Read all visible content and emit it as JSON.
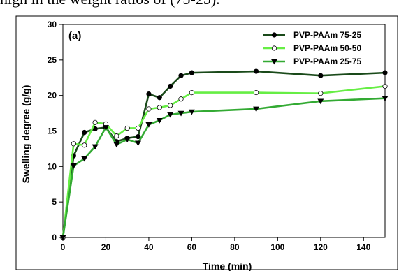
{
  "caption_fragment": "high in the weight ratios of (75-25).",
  "chart_data": {
    "type": "line",
    "panel_label": "(a)",
    "xlabel": "Time (min)",
    "ylabel": "Swelling degree (g/g)",
    "xlim": [
      0,
      150
    ],
    "ylim": [
      0,
      30
    ],
    "xticks": [
      0,
      20,
      40,
      60,
      80,
      100,
      120,
      140
    ],
    "yticks": [
      0,
      5,
      10,
      15,
      20,
      25,
      30
    ],
    "grid": false,
    "legend_position": "top-right",
    "series": [
      {
        "name": "PVP-PAAm 75-25",
        "color": "#1a4a1a",
        "marker": "circle-filled",
        "x": [
          0,
          5,
          10,
          15,
          20,
          25,
          30,
          35,
          40,
          45,
          50,
          55,
          60,
          90,
          120,
          150
        ],
        "y": [
          0,
          11.5,
          14.8,
          15.3,
          15.5,
          13.5,
          14.0,
          14.2,
          20.2,
          19.7,
          21.3,
          22.8,
          23.2,
          23.4,
          22.8,
          23.2
        ]
      },
      {
        "name": "PVP-PAAm 50-50",
        "color": "#66ee44",
        "marker": "circle-open",
        "x": [
          0,
          5,
          10,
          15,
          20,
          25,
          30,
          35,
          40,
          45,
          50,
          55,
          60,
          90,
          120,
          150
        ],
        "y": [
          0,
          13.2,
          13.0,
          16.2,
          16.0,
          14.3,
          15.4,
          15.4,
          18.1,
          18.3,
          18.6,
          19.5,
          20.4,
          20.4,
          20.3,
          21.3
        ]
      },
      {
        "name": "PVP-PAAm 25-75",
        "color": "#33aa33",
        "marker": "triangle-down",
        "x": [
          0,
          5,
          10,
          15,
          20,
          25,
          30,
          35,
          40,
          45,
          50,
          55,
          60,
          90,
          120,
          150
        ],
        "y": [
          0,
          10.1,
          11.1,
          12.8,
          15.5,
          13.1,
          13.8,
          13.3,
          15.9,
          16.5,
          17.3,
          17.5,
          17.7,
          18.1,
          19.2,
          19.6
        ]
      }
    ]
  }
}
